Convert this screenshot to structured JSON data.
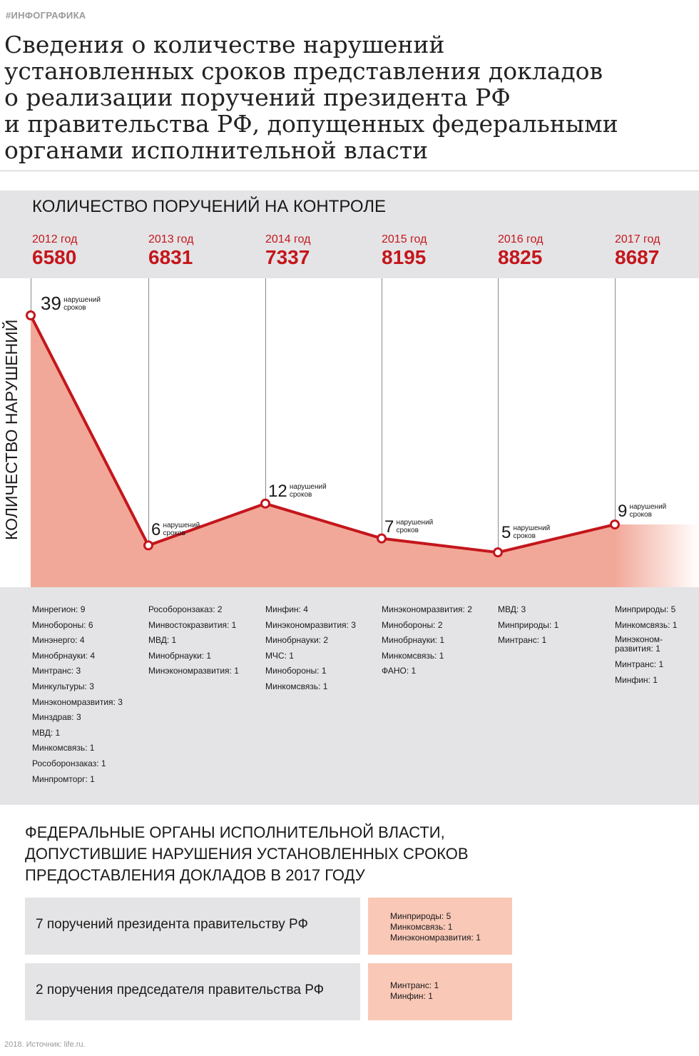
{
  "tag": "#ИНФОГРАФИКА",
  "headline": [
    "Сведения о количестве нарушений",
    "установленных сроков представления докладов",
    "о реализации поручений президента РФ",
    "и правительства РФ, допущенных федеральными",
    "органами исполнительной власти"
  ],
  "section1_title": "Количество поручений на контроле",
  "years": [
    {
      "label": "2012 год",
      "count": "6580"
    },
    {
      "label": "2013 год",
      "count": "6831"
    },
    {
      "label": "2014 год",
      "count": "7337"
    },
    {
      "label": "2015 год",
      "count": "8195"
    },
    {
      "label": "2016 год",
      "count": "8825"
    },
    {
      "label": "2017 год",
      "count": "8687"
    }
  ],
  "violation_unit_line1": "нарушений",
  "violation_unit_line2": "сроков",
  "colors": {
    "accent": "#c4161c",
    "fill": "#f2a898",
    "gray": "#e4e4e6",
    "box_pink": "#f9c8b7"
  },
  "chart_data": {
    "type": "area",
    "categories": [
      "2012",
      "2013",
      "2014",
      "2015",
      "2016",
      "2017"
    ],
    "values": [
      39,
      6,
      12,
      7,
      5,
      9
    ],
    "ylabel": "Количество нарушений",
    "xlabel": "",
    "grid": "vertical lines at each year"
  },
  "breakdown": [
    [
      "Минрегион: 9",
      "Минобороны: 6",
      "Минэнерго: 4",
      "Минобрнауки: 4",
      "Минтранс: 3",
      "Минкультуры: 3",
      "Минэкономразвития: 3",
      "Минздрав: 3",
      "МВД: 1",
      "Минкомсвязь: 1",
      "Рособоронзаказ: 1",
      "Минпромторг: 1"
    ],
    [
      "Рособоронзаказ: 2",
      "Минвостокразвития: 1",
      "МВД: 1",
      "Минобрнауки: 1",
      "Минэкономразвития: 1"
    ],
    [
      "Минфин: 4",
      "Минэкономразвития: 3",
      "Минобрнауки: 2",
      "МЧС: 1",
      "Минобороны: 1",
      "Минкомсвязь: 1"
    ],
    [
      "Минэкономразвития: 2",
      "Минобороны: 2",
      "Минобрнауки: 1",
      "Минкомсвязь: 1",
      "ФАНО: 1"
    ],
    [
      "МВД: 3",
      "Минприроды: 1",
      "Минтранс: 1"
    ],
    [
      "Минприроды: 5",
      "Минкомсвязь: 1",
      "Минэконом-развития: 1",
      "Минтранс: 1",
      "Минфин: 1"
    ]
  ],
  "section2_title": [
    "Федеральные органы исполнительной власти,",
    "допустившие нарушения установленных сроков",
    "предоставления докладов в 2017 году"
  ],
  "orders": [
    {
      "label": "7 поручений президента правительству РФ",
      "bodies": [
        "Минприроды: 5",
        "Минкомсвязь: 1",
        "Минэкономразвития: 1"
      ]
    },
    {
      "label": "2 поручения председателя правительства РФ",
      "bodies": [
        "Минтранс: 1",
        "Минфин: 1"
      ]
    }
  ],
  "footer": "2018. Источник: life.ru."
}
